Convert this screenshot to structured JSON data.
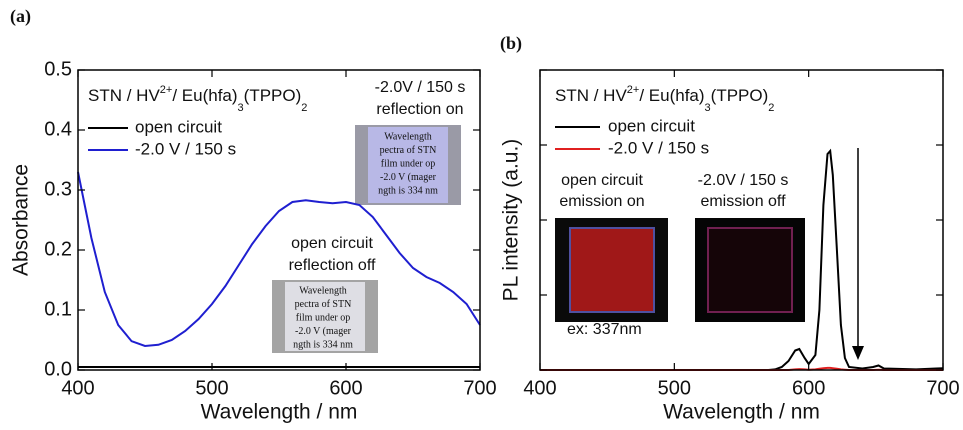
{
  "chart_data": [
    {
      "type": "line",
      "panel_label": "(a)",
      "xlabel": "Wavelength / nm",
      "ylabel": "Absorbance",
      "legend_title_parts": [
        "STN / HV",
        "2+",
        "/ Eu(hfa)",
        "3",
        "(TPPO)",
        "2"
      ],
      "xlim": [
        400,
        700
      ],
      "xticks": [
        400,
        500,
        600,
        700
      ],
      "ylim": [
        0,
        0.5
      ],
      "yticks": [
        {
          "value": 0,
          "label": "0.0"
        },
        0.1,
        0.2,
        0.3,
        0.4,
        0.5
      ],
      "ytick_labels": true,
      "x": [
        400,
        410,
        420,
        430,
        440,
        450,
        460,
        470,
        480,
        490,
        500,
        510,
        520,
        530,
        540,
        550,
        560,
        570,
        580,
        590,
        600,
        610,
        620,
        630,
        640,
        650,
        660,
        670,
        680,
        690,
        700
      ],
      "series": [
        {
          "name": "open circuit",
          "color": "#000000",
          "values": [
            0.005,
            0.005,
            0.005,
            0.005,
            0.005,
            0.005,
            0.005,
            0.005,
            0.005,
            0.005,
            0.005,
            0.005,
            0.005,
            0.005,
            0.005,
            0.005,
            0.005,
            0.005,
            0.005,
            0.005,
            0.005,
            0.005,
            0.005,
            0.005,
            0.005,
            0.005,
            0.005,
            0.005,
            0.005,
            0.005,
            0.005
          ]
        },
        {
          "name": "-2.0 V / 150 s",
          "color": "#1f1fd0",
          "values": [
            0.33,
            0.22,
            0.13,
            0.075,
            0.048,
            0.04,
            0.042,
            0.05,
            0.065,
            0.085,
            0.11,
            0.14,
            0.175,
            0.21,
            0.24,
            0.265,
            0.28,
            0.283,
            0.28,
            0.278,
            0.28,
            0.275,
            0.255,
            0.225,
            0.195,
            0.17,
            0.155,
            0.145,
            0.13,
            0.11,
            0.075
          ]
        }
      ],
      "annotations": [
        "-2.0V / 150 s",
        "reflection on",
        "open circuit",
        "reflection off"
      ],
      "inset_text": [
        "Wavelength",
        "pectra of STN",
        "film under op",
        "-2.0 V (mager",
        "ngth is 334 nm"
      ]
    },
    {
      "type": "line",
      "panel_label": "(b)",
      "xlabel": "Wavelength / nm",
      "ylabel": "PL intensity (a.u.)",
      "legend_title_parts": [
        "STN / HV",
        "2+",
        "/ Eu(hfa)",
        "3",
        "(TPPO)",
        "2"
      ],
      "xlim": [
        400,
        700
      ],
      "xticks": [
        400,
        500,
        600,
        700
      ],
      "ylim": [
        0,
        1
      ],
      "yticks": [
        0,
        0.25,
        0.5,
        0.75,
        1
      ],
      "ytick_labels": false,
      "x": [
        400,
        450,
        500,
        550,
        570,
        575,
        580,
        585,
        590,
        593,
        597,
        600,
        605,
        608,
        611,
        614,
        616,
        618,
        621,
        624,
        627,
        630,
        640,
        648,
        652,
        656,
        680,
        695,
        700
      ],
      "series": [
        {
          "name": "open circuit",
          "color": "#000000",
          "values": [
            0,
            0,
            0,
            0,
            0,
            0.002,
            0.01,
            0.03,
            0.065,
            0.07,
            0.04,
            0.02,
            0.05,
            0.2,
            0.55,
            0.72,
            0.73,
            0.65,
            0.4,
            0.15,
            0.04,
            0.01,
            0.005,
            0.01,
            0.015,
            0.005,
            0.002,
            0.005,
            0.006
          ]
        },
        {
          "name": "-2.0 V / 150 s",
          "color": "#e02020",
          "values": [
            0,
            0,
            0,
            0,
            0,
            0,
            0,
            0,
            0.002,
            0.003,
            0.002,
            0.001,
            0.002,
            0.004,
            0.006,
            0.007,
            0.007,
            0.006,
            0.004,
            0.002,
            0.001,
            0,
            0,
            0,
            0.001,
            0,
            0,
            0,
            0
          ]
        }
      ],
      "annotations": [
        "open circuit",
        "emission on",
        "-2.0V / 150 s",
        "emission off",
        "ex: 337nm"
      ]
    }
  ]
}
